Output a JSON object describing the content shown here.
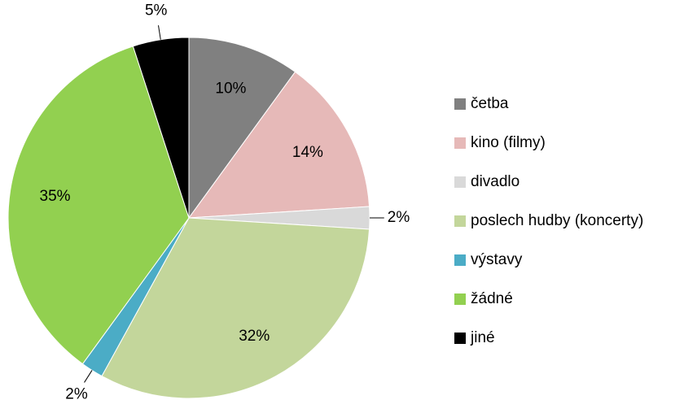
{
  "chart_data": {
    "type": "pie",
    "categories": [
      "četba",
      "kino (filmy)",
      "divadlo",
      "poslech hudby (koncerty)",
      "výstavy",
      "žádné",
      "jiné"
    ],
    "values": [
      10,
      14,
      2,
      32,
      2,
      35,
      5
    ],
    "value_labels": [
      "10%",
      "14%",
      "2%",
      "32%",
      "2%",
      "35%",
      "5%"
    ],
    "colors": [
      "#808080",
      "#e6b9b8",
      "#d9d9d9",
      "#c3d69b",
      "#4bacc6",
      "#92d050",
      "#000000"
    ],
    "legend": "right"
  }
}
